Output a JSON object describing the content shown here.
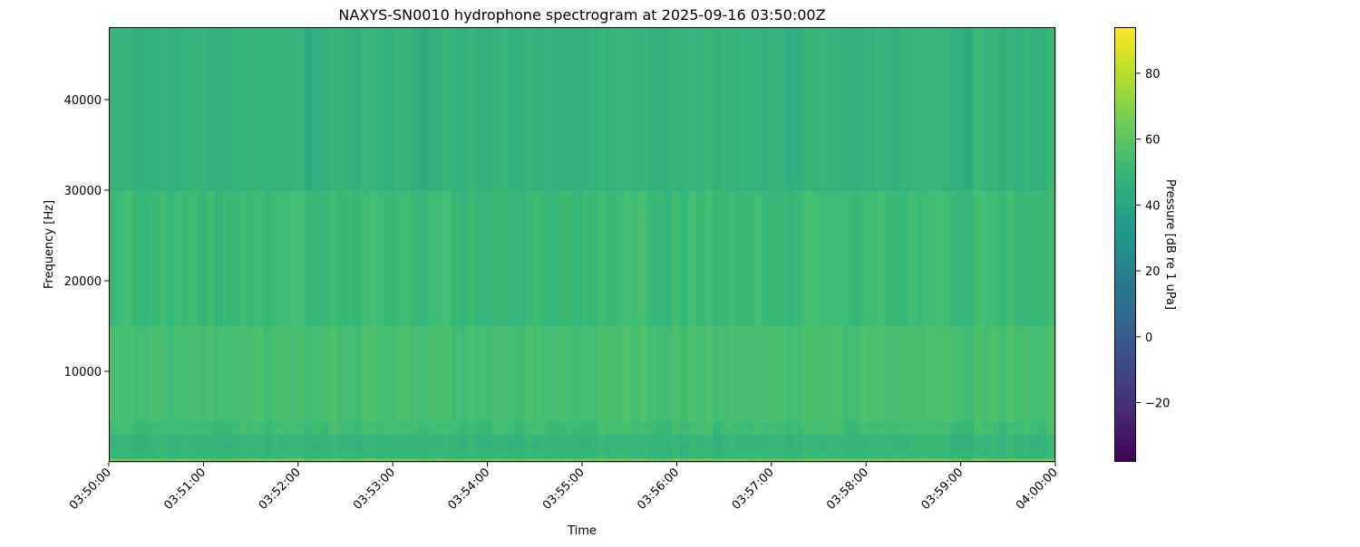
{
  "chart_data": {
    "type": "heatmap",
    "title": "NAXYS-SN0010 hydrophone spectrogram at 2025-09-16 03:50:00Z",
    "xlabel": "Time",
    "ylabel": "Frequency [Hz]",
    "colorbar_label": "Pressure [dB re 1 uPa]",
    "colormap": "viridis",
    "x_ticks": [
      "03:50:00",
      "03:51:00",
      "03:52:00",
      "03:53:00",
      "03:54:00",
      "03:55:00",
      "03:56:00",
      "03:57:00",
      "03:58:00",
      "03:59:00",
      "04:00:00"
    ],
    "y_ticks": [
      10000,
      20000,
      30000,
      40000
    ],
    "ylim": [
      0,
      48000
    ],
    "colorbar_ticks": [
      -20,
      0,
      20,
      40,
      60,
      80
    ],
    "clim": [
      -38,
      94
    ],
    "frequency_bands_hz": [
      [
        0,
        400
      ],
      [
        400,
        1200
      ],
      [
        1200,
        3000
      ],
      [
        3000,
        4500
      ],
      [
        4500,
        15000
      ],
      [
        15000,
        30000
      ],
      [
        30000,
        48000
      ]
    ],
    "band_levels_db": [
      66,
      50,
      49,
      53,
      55,
      52,
      48
    ],
    "grid": false
  }
}
